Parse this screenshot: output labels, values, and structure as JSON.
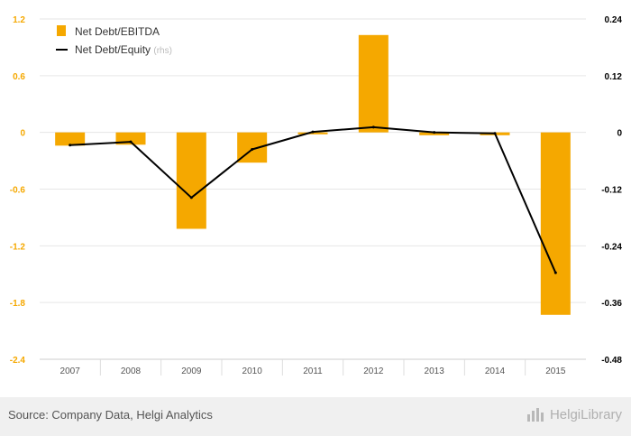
{
  "chart_data": {
    "type": "bar+line",
    "categories": [
      "2007",
      "2008",
      "2009",
      "2010",
      "2011",
      "2012",
      "2013",
      "2014",
      "2015"
    ],
    "series": [
      {
        "name": "Net Debt/EBITDA",
        "type": "bar",
        "axis": "left",
        "color": "#f5a800",
        "values": [
          -0.14,
          -0.13,
          -1.02,
          -0.32,
          -0.02,
          1.03,
          -0.03,
          -0.03,
          -1.93
        ]
      },
      {
        "name": "Net Debt/Equity",
        "name_suffix": "(rhs)",
        "type": "line",
        "axis": "right",
        "color": "#000000",
        "values": [
          -0.027,
          -0.02,
          -0.138,
          -0.036,
          0.001,
          0.011,
          0.0,
          -0.002,
          -0.297
        ]
      }
    ],
    "y_left": {
      "ylim": [
        -2.4,
        1.2
      ],
      "ticks": [
        "1.2",
        "0.6",
        "0",
        "-0.6",
        "-1.2",
        "-1.8",
        "-2.4"
      ],
      "tick_values": [
        1.2,
        0.6,
        0,
        -0.6,
        -1.2,
        -1.8,
        -2.4
      ],
      "tick_color": "#f5a800"
    },
    "y_right": {
      "ylim": [
        -0.48,
        0.24
      ],
      "ticks": [
        "0.24",
        "0.12",
        "0",
        "-0.12",
        "-0.24",
        "-0.36",
        "-0.48"
      ],
      "tick_values": [
        0.24,
        0.12,
        0,
        -0.12,
        -0.24,
        -0.36,
        -0.48
      ],
      "tick_color": "#000000"
    },
    "grid": true,
    "legend_position": "top-left"
  },
  "footer": {
    "source": "Source: Company Data, Helgi Analytics",
    "brand": "HelgiLibrary",
    "brand_icon": "bar-chart-icon"
  },
  "colors": {
    "bar": "#f5a800",
    "line": "#000000",
    "grid": "#e6e6e6",
    "footer_bg": "#f0f0f0"
  }
}
